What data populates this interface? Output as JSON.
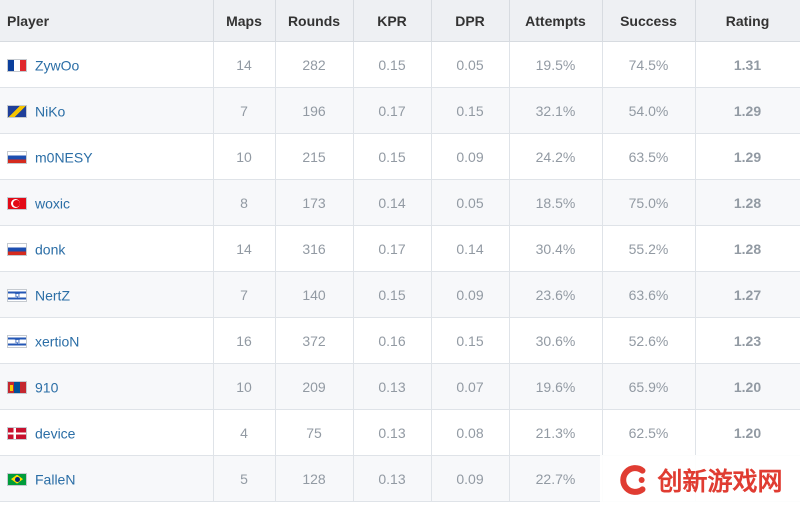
{
  "table": {
    "headers": {
      "player": "Player",
      "maps": "Maps",
      "rounds": "Rounds",
      "kpr": "KPR",
      "dpr": "DPR",
      "attempts": "Attempts",
      "success": "Success",
      "rating": "Rating"
    },
    "rows": [
      {
        "flag": "flag-fr",
        "name": "ZywOo",
        "maps": "14",
        "rounds": "282",
        "kpr": "0.15",
        "dpr": "0.05",
        "attempts": "19.5%",
        "success": "74.5%",
        "rating": "1.31"
      },
      {
        "flag": "flag-ba",
        "name": "NiKo",
        "maps": "7",
        "rounds": "196",
        "kpr": "0.17",
        "dpr": "0.15",
        "attempts": "32.1%",
        "success": "54.0%",
        "rating": "1.29"
      },
      {
        "flag": "flag-ru",
        "name": "m0NESY",
        "maps": "10",
        "rounds": "215",
        "kpr": "0.15",
        "dpr": "0.09",
        "attempts": "24.2%",
        "success": "63.5%",
        "rating": "1.29"
      },
      {
        "flag": "flag-tr",
        "name": "woxic",
        "maps": "8",
        "rounds": "173",
        "kpr": "0.14",
        "dpr": "0.05",
        "attempts": "18.5%",
        "success": "75.0%",
        "rating": "1.28"
      },
      {
        "flag": "flag-ru",
        "name": "donk",
        "maps": "14",
        "rounds": "316",
        "kpr": "0.17",
        "dpr": "0.14",
        "attempts": "30.4%",
        "success": "55.2%",
        "rating": "1.28"
      },
      {
        "flag": "flag-il",
        "name": "NertZ",
        "maps": "7",
        "rounds": "140",
        "kpr": "0.15",
        "dpr": "0.09",
        "attempts": "23.6%",
        "success": "63.6%",
        "rating": "1.27"
      },
      {
        "flag": "flag-il",
        "name": "xertioN",
        "maps": "16",
        "rounds": "372",
        "kpr": "0.16",
        "dpr": "0.15",
        "attempts": "30.6%",
        "success": "52.6%",
        "rating": "1.23"
      },
      {
        "flag": "flag-mn",
        "name": "910",
        "maps": "10",
        "rounds": "209",
        "kpr": "0.13",
        "dpr": "0.07",
        "attempts": "19.6%",
        "success": "65.9%",
        "rating": "1.20"
      },
      {
        "flag": "flag-dk",
        "name": "device",
        "maps": "4",
        "rounds": "75",
        "kpr": "0.13",
        "dpr": "0.08",
        "attempts": "21.3%",
        "success": "62.5%",
        "rating": "1.20"
      },
      {
        "flag": "flag-br",
        "name": "FalleN",
        "maps": "5",
        "rounds": "128",
        "kpr": "0.13",
        "dpr": "0.09",
        "attempts": "22.7%",
        "success": "",
        "rating": ""
      }
    ]
  },
  "watermark": {
    "text": "创新游戏网",
    "color": "#e03c32"
  },
  "colors": {
    "header_bg": "#eef0f3",
    "player_link": "#2b6ea6",
    "rating_green": "#18a516",
    "cell_text": "#929aa3"
  }
}
